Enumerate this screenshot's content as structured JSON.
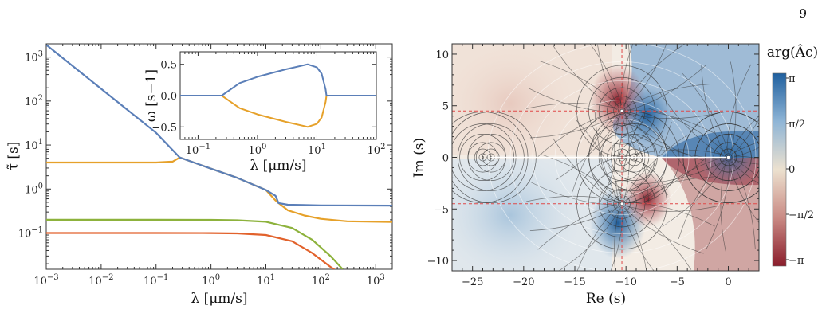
{
  "page_number": "9",
  "colors": {
    "blue": "#5b7fb8",
    "orange": "#e6a12a",
    "green": "#8db23c",
    "red": "#e2622c",
    "dashed_red": "#e04848"
  },
  "chart_data": [
    {
      "type": "line",
      "name": "relaxation-times",
      "xscale": "log",
      "yscale": "log",
      "xlim": [
        0.001,
        2000
      ],
      "ylim": [
        0.015,
        2000
      ],
      "xlabel": "λ [μm/s]",
      "ylabel": "τ̃ [s]",
      "xticks": [
        "10−3",
        "10−2",
        "10−1",
        "100",
        "101",
        "102",
        "103"
      ],
      "yticks": [
        "10−1",
        "100",
        "101",
        "102",
        "103"
      ],
      "series": [
        {
          "color": "blue",
          "points": [
            [
              0.001,
              1900
            ],
            [
              0.01,
              190
            ],
            [
              0.1,
              19
            ],
            [
              0.27,
              5.2
            ],
            [
              1,
              2.9
            ],
            [
              3,
              1.8
            ],
            [
              10,
              0.95
            ],
            [
              15,
              0.7
            ],
            [
              17,
              0.48
            ],
            [
              25,
              0.44
            ],
            [
              100,
              0.425
            ],
            [
              2000,
              0.42
            ]
          ]
        },
        {
          "color": "orange",
          "points": [
            [
              0.001,
              4.0
            ],
            [
              0.01,
              4.0
            ],
            [
              0.1,
              4.0
            ],
            [
              0.2,
              4.2
            ],
            [
              0.27,
              5.2
            ],
            [
              1,
              2.9
            ],
            [
              3,
              1.8
            ],
            [
              10,
              0.95
            ],
            [
              15,
              0.55
            ],
            [
              17,
              0.48
            ],
            [
              25,
              0.33
            ],
            [
              50,
              0.25
            ],
            [
              100,
              0.21
            ],
            [
              300,
              0.185
            ],
            [
              2000,
              0.178
            ]
          ]
        },
        {
          "color": "green",
          "points": [
            [
              0.001,
              0.2
            ],
            [
              0.1,
              0.2
            ],
            [
              1,
              0.199
            ],
            [
              3,
              0.195
            ],
            [
              10,
              0.18
            ],
            [
              30,
              0.13
            ],
            [
              70,
              0.07
            ],
            [
              150,
              0.03
            ],
            [
              250,
              0.015
            ]
          ]
        },
        {
          "color": "red",
          "points": [
            [
              0.001,
              0.1
            ],
            [
              0.1,
              0.1
            ],
            [
              1,
              0.0998
            ],
            [
              3,
              0.098
            ],
            [
              10,
              0.09
            ],
            [
              30,
              0.065
            ],
            [
              70,
              0.035
            ],
            [
              150,
              0.017
            ],
            [
              250,
              0.011
            ]
          ]
        }
      ]
    },
    {
      "type": "line",
      "name": "inset-omega",
      "xscale": "log",
      "xlim": [
        0.05,
        100
      ],
      "ylim": [
        -0.7,
        0.7
      ],
      "xlabel": "λ [μm/s]",
      "ylabel": "ω [s−1]",
      "xticks": [
        "10−1",
        "100",
        "101",
        "102"
      ],
      "yticks": [
        "0.5",
        "0.0",
        "−0.5"
      ],
      "series": [
        {
          "color": "blue",
          "points": [
            [
              0.05,
              0
            ],
            [
              0.25,
              0
            ],
            [
              0.5,
              0.2
            ],
            [
              1,
              0.3
            ],
            [
              3,
              0.42
            ],
            [
              7,
              0.5
            ],
            [
              10,
              0.45
            ],
            [
              12,
              0.35
            ],
            [
              14,
              0.1
            ],
            [
              14.5,
              0
            ],
            [
              100,
              0
            ]
          ]
        },
        {
          "color": "orange",
          "points": [
            [
              0.05,
              0
            ],
            [
              0.25,
              0
            ],
            [
              0.5,
              -0.2
            ],
            [
              1,
              -0.3
            ],
            [
              3,
              -0.42
            ],
            [
              7,
              -0.5
            ],
            [
              10,
              -0.45
            ],
            [
              12,
              -0.35
            ],
            [
              14,
              -0.1
            ],
            [
              14.5,
              0
            ],
            [
              100,
              0
            ]
          ]
        }
      ]
    },
    {
      "type": "heatmap",
      "name": "complex-phase",
      "xlim": [
        -27,
        3
      ],
      "ylim": [
        -11,
        11
      ],
      "xlabel": "Re (s)",
      "ylabel": "Im (s)",
      "xticks": [
        "−25",
        "−20",
        "−15",
        "−10",
        "−5",
        "0"
      ],
      "yticks": [
        "10",
        "5",
        "0",
        "−5",
        "−10"
      ],
      "colorbar": {
        "title": "arg(Âc)",
        "ticks": [
          "π",
          "π/2",
          "0",
          "−π/2",
          "−π"
        ],
        "colors": [
          "#2b6aa6",
          "#e8dccb",
          "#8e2430"
        ]
      },
      "singular_points_re": [
        -24,
        -23.2,
        -10.4,
        -9.2,
        0
      ],
      "poles": [
        [
          -10.4,
          4.5
        ],
        [
          -10.4,
          -4.5
        ],
        [
          0,
          0
        ]
      ],
      "dashed_lines": {
        "horizontal_im": [
          4.5,
          -4.5
        ],
        "vertical_re": [
          -10.4
        ]
      }
    }
  ]
}
